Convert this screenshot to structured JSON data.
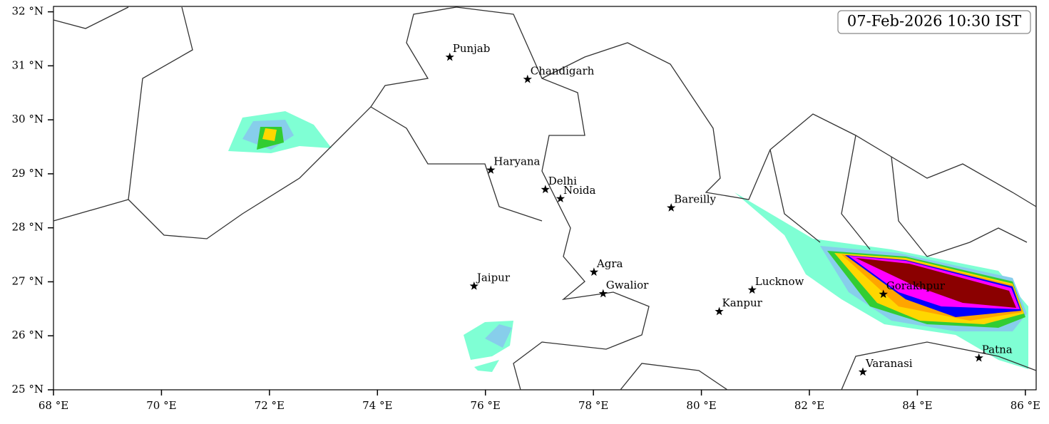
{
  "map": {
    "timestamp": "07-Feb-2026 10:30 IST",
    "xlim": [
      68,
      86.2
    ],
    "ylim": [
      25,
      32.1
    ],
    "xticks": [
      {
        "value": 68,
        "label": "68 °E"
      },
      {
        "value": 70,
        "label": "70 °E"
      },
      {
        "value": 72,
        "label": "72 °E"
      },
      {
        "value": 74,
        "label": "74 °E"
      },
      {
        "value": 76,
        "label": "76 °E"
      },
      {
        "value": 78,
        "label": "78 °E"
      },
      {
        "value": 80,
        "label": "80 °E"
      },
      {
        "value": 82,
        "label": "82 °E"
      },
      {
        "value": 84,
        "label": "84 °E"
      },
      {
        "value": 86,
        "label": "86 °E"
      }
    ],
    "yticks": [
      {
        "value": 25,
        "label": "25 °N"
      },
      {
        "value": 26,
        "label": "26 °N"
      },
      {
        "value": 27,
        "label": "27 °N"
      },
      {
        "value": 28,
        "label": "28 °N"
      },
      {
        "value": 29,
        "label": "29 °N"
      },
      {
        "value": 30,
        "label": "30 °N"
      },
      {
        "value": 31,
        "label": "31 °N"
      },
      {
        "value": 32,
        "label": "32 °N"
      }
    ],
    "cities": {
      "names": [
        "Punjab",
        "Chandigarh",
        "Haryana",
        "Delhi",
        "Noida",
        "Bareilly",
        "Agra",
        "Jaipur",
        "Gwalior",
        "Lucknow",
        "Kanpur",
        "Gorakhpur",
        "Varanasi",
        "Patna"
      ],
      "lon": [
        75.34,
        76.78,
        76.1,
        77.11,
        77.39,
        79.44,
        78.01,
        75.79,
        78.18,
        80.94,
        80.33,
        83.37,
        82.99,
        85.14
      ],
      "lat": [
        31.16,
        30.75,
        29.07,
        28.71,
        28.54,
        28.37,
        27.18,
        26.92,
        26.78,
        26.85,
        26.45,
        26.77,
        25.33,
        25.59
      ]
    }
  }
}
